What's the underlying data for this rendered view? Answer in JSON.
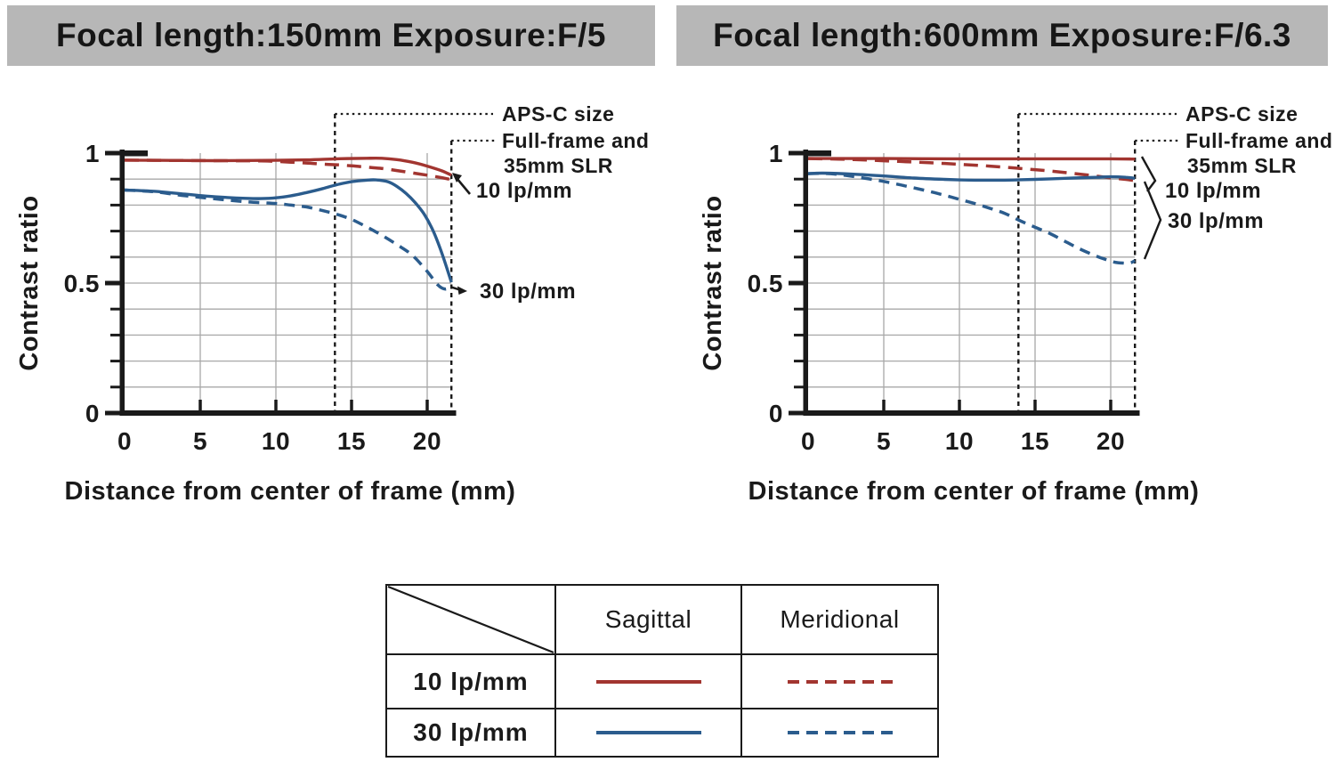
{
  "colors": {
    "lp10": "#a23530",
    "lp30": "#2b5c8d",
    "grid": "#a8a8a8",
    "axis": "#1a1a1a",
    "header_bg": "#b7b7b7",
    "header_text": "#161616",
    "page_bg": "#ffffff"
  },
  "headers": [
    {
      "title": "Focal length:150mm  Exposure:F/5"
    },
    {
      "title": "Focal length:600mm  Exposure:F/6.3"
    }
  ],
  "chart_data": [
    {
      "type": "line",
      "title": "Focal length:150mm  Exposure:F/5",
      "xlabel": "Distance from center of frame (mm)",
      "ylabel": "Contrast ratio",
      "xlim": [
        0,
        21.8
      ],
      "ylim": [
        0,
        1
      ],
      "x_ticks": [
        0,
        5,
        10,
        15,
        20
      ],
      "y_ticks": [
        0,
        0.5,
        1
      ],
      "y_minor_step": 0.1,
      "grid": true,
      "pointer_style": "arrow",
      "frame_lines": {
        "aps_c_mm": 13.9,
        "full_frame_mm": 21.6,
        "aps_c_label": "APS-C size",
        "full_frame_label": [
          "Full-frame and",
          "35mm SLR"
        ]
      },
      "series_labels": {
        "lp10": "10 lp/mm",
        "lp30": "30 lp/mm"
      },
      "series": [
        {
          "name": "10 lp/mm Sagittal",
          "freq": "lp10",
          "line": "solid",
          "points": [
            [
              0,
              0.973
            ],
            [
              3,
              0.972
            ],
            [
              6,
              0.971
            ],
            [
              9,
              0.972
            ],
            [
              12,
              0.974
            ],
            [
              14,
              0.978
            ],
            [
              16,
              0.98
            ],
            [
              17,
              0.98
            ],
            [
              18,
              0.975
            ],
            [
              19,
              0.965
            ],
            [
              20,
              0.95
            ],
            [
              21,
              0.931
            ],
            [
              21.6,
              0.915
            ]
          ]
        },
        {
          "name": "10 lp/mm Meridional",
          "freq": "lp10",
          "line": "dashed",
          "points": [
            [
              0,
              0.973
            ],
            [
              3,
              0.972
            ],
            [
              6,
              0.971
            ],
            [
              9,
              0.97
            ],
            [
              10,
              0.968
            ],
            [
              11,
              0.965
            ],
            [
              12,
              0.962
            ],
            [
              13,
              0.958
            ],
            [
              14,
              0.955
            ],
            [
              15,
              0.951
            ],
            [
              16,
              0.946
            ],
            [
              17,
              0.941
            ],
            [
              18,
              0.933
            ],
            [
              19,
              0.924
            ],
            [
              20,
              0.915
            ],
            [
              21,
              0.905
            ],
            [
              21.6,
              0.898
            ]
          ]
        },
        {
          "name": "30 lp/mm Sagittal",
          "freq": "lp30",
          "line": "solid",
          "points": [
            [
              0,
              0.858
            ],
            [
              2,
              0.853
            ],
            [
              4,
              0.842
            ],
            [
              6,
              0.832
            ],
            [
              8,
              0.826
            ],
            [
              9,
              0.825
            ],
            [
              10,
              0.828
            ],
            [
              11,
              0.836
            ],
            [
              12,
              0.848
            ],
            [
              13,
              0.862
            ],
            [
              14,
              0.878
            ],
            [
              15,
              0.89
            ],
            [
              16,
              0.896
            ],
            [
              16.6,
              0.897
            ],
            [
              17.4,
              0.89
            ],
            [
              18,
              0.872
            ],
            [
              18.6,
              0.845
            ],
            [
              19.2,
              0.81
            ],
            [
              19.8,
              0.765
            ],
            [
              20.4,
              0.7
            ],
            [
              21,
              0.61
            ],
            [
              21.6,
              0.503
            ]
          ]
        },
        {
          "name": "30 lp/mm Meridional",
          "freq": "lp30",
          "line": "dashed",
          "points": [
            [
              0,
              0.858
            ],
            [
              2,
              0.851
            ],
            [
              4,
              0.836
            ],
            [
              6,
              0.824
            ],
            [
              8,
              0.813
            ],
            [
              10,
              0.806
            ],
            [
              11,
              0.8
            ],
            [
              12,
              0.793
            ],
            [
              13,
              0.78
            ],
            [
              14,
              0.765
            ],
            [
              15,
              0.745
            ],
            [
              16,
              0.716
            ],
            [
              17,
              0.684
            ],
            [
              18,
              0.648
            ],
            [
              19,
              0.608
            ],
            [
              20,
              0.545
            ],
            [
              20.7,
              0.493
            ],
            [
              21.2,
              0.477
            ],
            [
              21.6,
              0.49
            ]
          ]
        }
      ]
    },
    {
      "type": "line",
      "title": "Focal length:600mm  Exposure:F/6.3",
      "xlabel": "Distance from center of frame (mm)",
      "ylabel": "Contrast ratio",
      "xlim": [
        0,
        21.8
      ],
      "ylim": [
        0,
        1
      ],
      "x_ticks": [
        0,
        5,
        10,
        15,
        20
      ],
      "y_ticks": [
        0,
        0.5,
        1
      ],
      "y_minor_step": 0.1,
      "grid": true,
      "pointer_style": "brace",
      "frame_lines": {
        "aps_c_mm": 13.9,
        "full_frame_mm": 21.6,
        "aps_c_label": "APS-C size",
        "full_frame_label": [
          "Full-frame and",
          "35mm SLR"
        ]
      },
      "series_labels": {
        "lp10": "10 lp/mm",
        "lp30": "30 lp/mm"
      },
      "series": [
        {
          "name": "10 lp/mm Sagittal",
          "freq": "lp10",
          "line": "solid",
          "points": [
            [
              0,
              0.979
            ],
            [
              5,
              0.979
            ],
            [
              10,
              0.978
            ],
            [
              15,
              0.978
            ],
            [
              20,
              0.978
            ],
            [
              21.6,
              0.977
            ]
          ]
        },
        {
          "name": "10 lp/mm Meridional",
          "freq": "lp10",
          "line": "dashed",
          "points": [
            [
              0,
              0.979
            ],
            [
              2,
              0.977
            ],
            [
              4,
              0.973
            ],
            [
              6,
              0.968
            ],
            [
              8,
              0.963
            ],
            [
              10,
              0.957
            ],
            [
              12,
              0.95
            ],
            [
              14,
              0.941
            ],
            [
              16,
              0.931
            ],
            [
              18,
              0.919
            ],
            [
              20,
              0.905
            ],
            [
              21,
              0.899
            ],
            [
              21.6,
              0.894
            ]
          ]
        },
        {
          "name": "30 lp/mm Sagittal",
          "freq": "lp30",
          "line": "solid",
          "points": [
            [
              0,
              0.921
            ],
            [
              1,
              0.923
            ],
            [
              3,
              0.919
            ],
            [
              5,
              0.912
            ],
            [
              7,
              0.904
            ],
            [
              9,
              0.899
            ],
            [
              11,
              0.896
            ],
            [
              13,
              0.896
            ],
            [
              15,
              0.899
            ],
            [
              17,
              0.903
            ],
            [
              19,
              0.907
            ],
            [
              20,
              0.909
            ],
            [
              21,
              0.907
            ],
            [
              21.6,
              0.903
            ]
          ]
        },
        {
          "name": "30 lp/mm Meridional",
          "freq": "lp30",
          "line": "dashed",
          "points": [
            [
              0,
              0.921
            ],
            [
              1,
              0.922
            ],
            [
              2,
              0.918
            ],
            [
              3,
              0.91
            ],
            [
              4,
              0.901
            ],
            [
              5,
              0.891
            ],
            [
              6,
              0.879
            ],
            [
              7,
              0.866
            ],
            [
              8,
              0.853
            ],
            [
              9,
              0.838
            ],
            [
              10,
              0.822
            ],
            [
              11,
              0.806
            ],
            [
              12,
              0.788
            ],
            [
              13,
              0.768
            ],
            [
              14,
              0.74
            ],
            [
              15,
              0.715
            ],
            [
              16,
              0.69
            ],
            [
              17,
              0.66
            ],
            [
              18,
              0.63
            ],
            [
              19,
              0.605
            ],
            [
              19.6,
              0.592
            ],
            [
              20.2,
              0.581
            ],
            [
              20.8,
              0.577
            ],
            [
              21.3,
              0.578
            ],
            [
              21.6,
              0.586
            ]
          ]
        }
      ]
    }
  ],
  "legend_table": {
    "headers": [
      "Sagittal",
      "Meridional"
    ],
    "rows": [
      {
        "label": "10 lp/mm",
        "freq": "lp10"
      },
      {
        "label": "30 lp/mm",
        "freq": "lp30"
      }
    ]
  }
}
